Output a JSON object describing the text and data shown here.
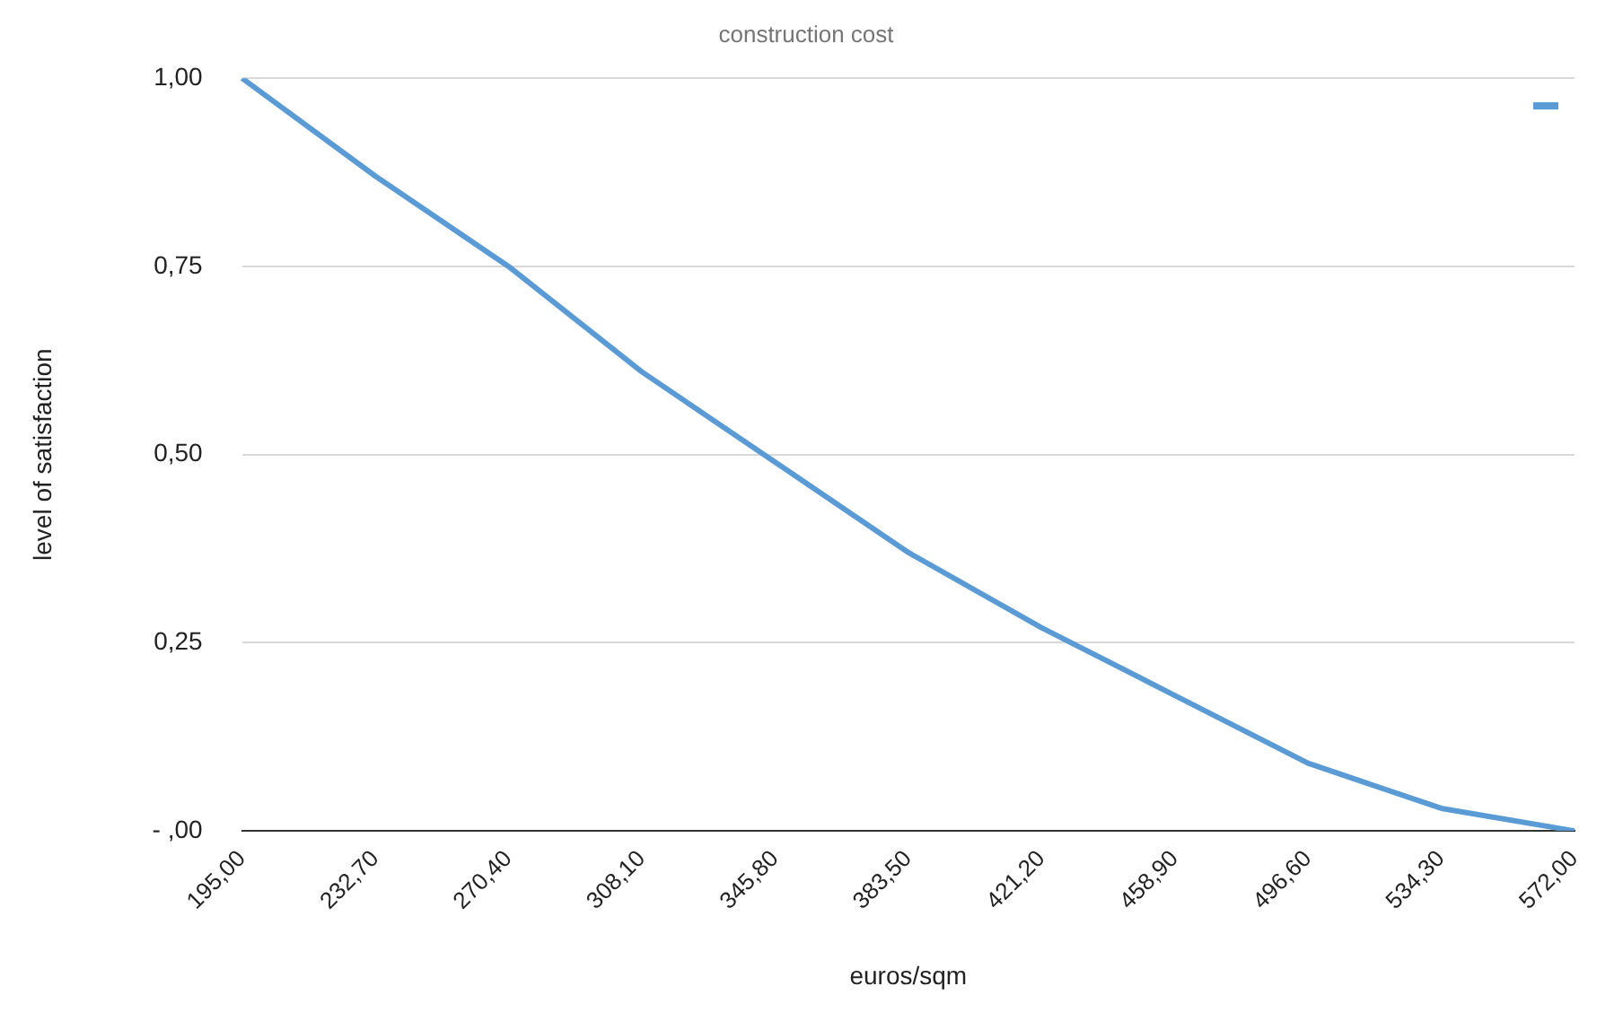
{
  "chart_data": {
    "type": "line",
    "title": "construction cost",
    "xlabel": "euros/sqm",
    "ylabel": "level of satisfaction",
    "categories": [
      "195,00",
      "232,70",
      "270,40",
      "308,10",
      "345,80",
      "383,50",
      "421,20",
      "458,90",
      "496,60",
      "534,30",
      "572,00"
    ],
    "series": [
      {
        "color": "#5b9bd5",
        "values": [
          1.0,
          0.87,
          0.75,
          0.61,
          0.49,
          0.37,
          0.27,
          0.18,
          0.09,
          0.03,
          0.0
        ]
      }
    ],
    "ylim": [
      0,
      1
    ],
    "yticks": [
      {
        "value": 0,
        "label": "- ,00"
      },
      {
        "value": 0.25,
        "label": "0,25"
      },
      {
        "value": 0.5,
        "label": "0,50"
      },
      {
        "value": 0.75,
        "label": "0,75"
      },
      {
        "value": 1,
        "label": "1,00"
      }
    ],
    "grid": "y",
    "marker": "none",
    "line_style": "solid"
  }
}
